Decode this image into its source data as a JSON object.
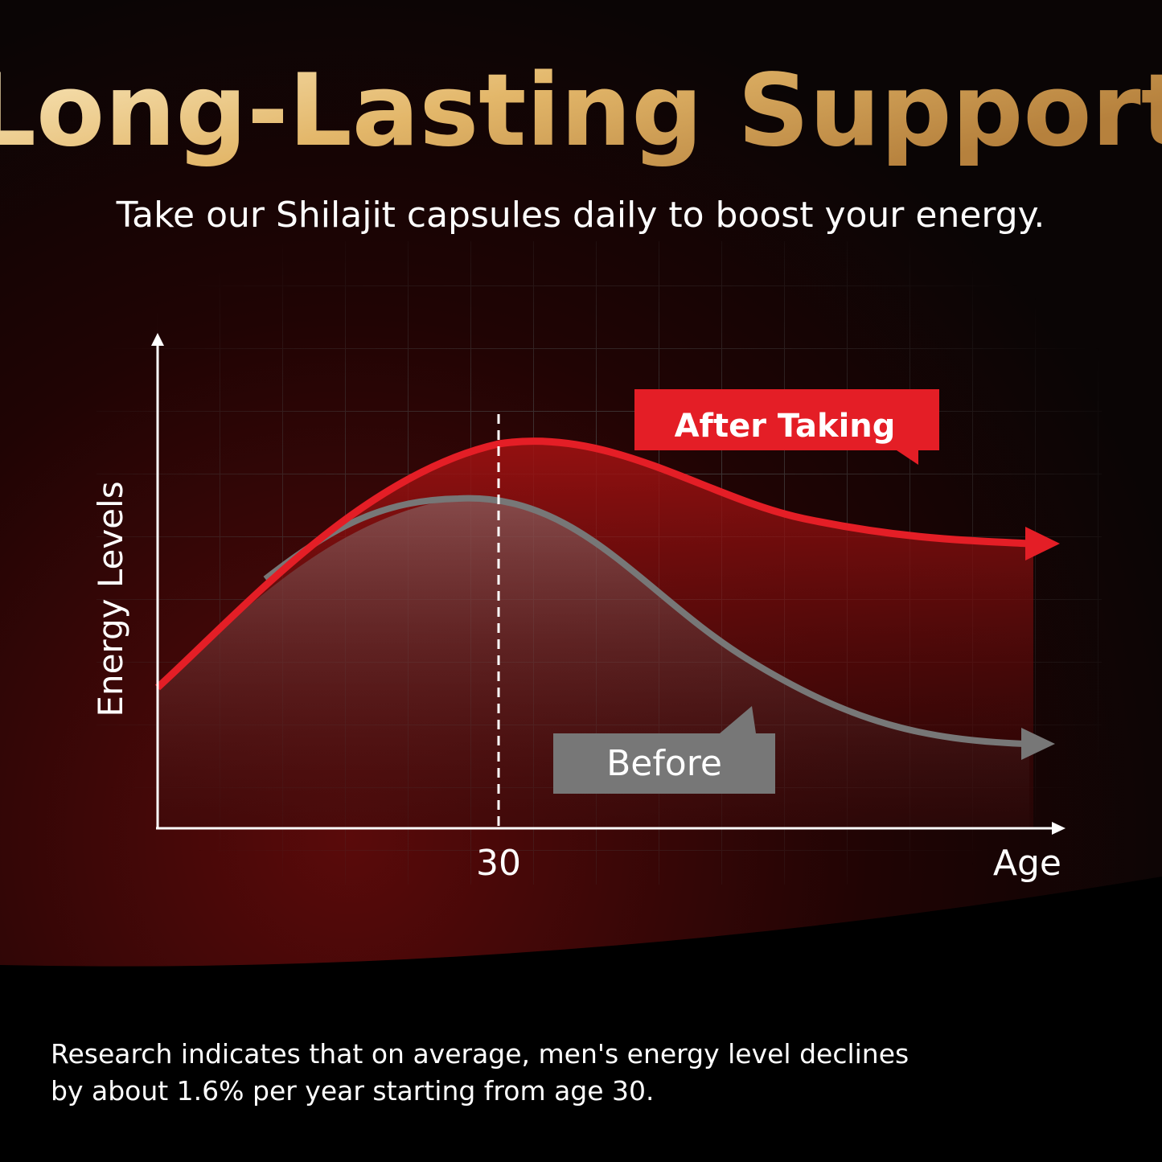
{
  "header": {
    "title": "Long-Lasting Support",
    "subtitle": "Take our Shilajit capsules daily to boost your energy."
  },
  "chart": {
    "y_axis_label": "Energy Levels",
    "x_axis_label": "Age",
    "marker_label": "30",
    "after_label": "After Taking",
    "before_label": "Before"
  },
  "footnote": {
    "lines": [
      "Research indicates that on average, men's energy level declines",
      "by about 1.6% per year starting from age 30."
    ]
  }
}
